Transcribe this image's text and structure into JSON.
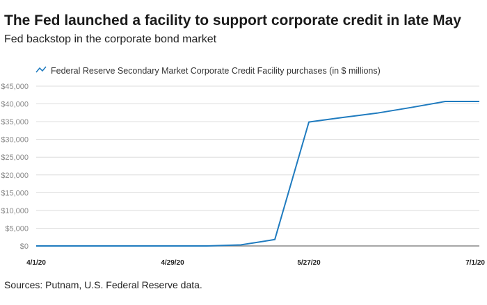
{
  "title": "The Fed launched a facility to support corporate credit in late May",
  "subtitle": "Fed backstop in the corporate bond market",
  "source": "Sources: Putnam, U.S. Federal Reserve data.",
  "colors": {
    "line": "#1f7bbf",
    "grid": "#dcdcdc",
    "axis": "#888888"
  },
  "chart_data": {
    "type": "line",
    "x": [
      "4/1/20",
      "4/8/20",
      "4/15/20",
      "4/22/20",
      "4/29/20",
      "5/6/20",
      "5/13/20",
      "5/20/20",
      "5/27/20",
      "6/3/20",
      "6/10/20",
      "6/17/20",
      "6/24/20",
      "7/1/20"
    ],
    "series": [
      {
        "name": "Federal Reserve Secondary Market Corporate Credit Facility purchases (in $ millions)",
        "values": [
          0,
          0,
          0,
          0,
          0,
          0,
          300,
          1800,
          34900,
          36200,
          37400,
          39000,
          40700,
          40700
        ]
      }
    ],
    "x_tick_labels": [
      "4/1/20",
      "4/29/20",
      "5/27/20",
      "7/1/20"
    ],
    "y_tick_labels": [
      "$0",
      "$5,000",
      "$10,000",
      "$15,000",
      "$20,000",
      "$25,000",
      "$30,000",
      "$35,000",
      "$40,000",
      "$45,000"
    ],
    "ylim": [
      0,
      45000
    ],
    "grid": true,
    "legend": "top"
  }
}
